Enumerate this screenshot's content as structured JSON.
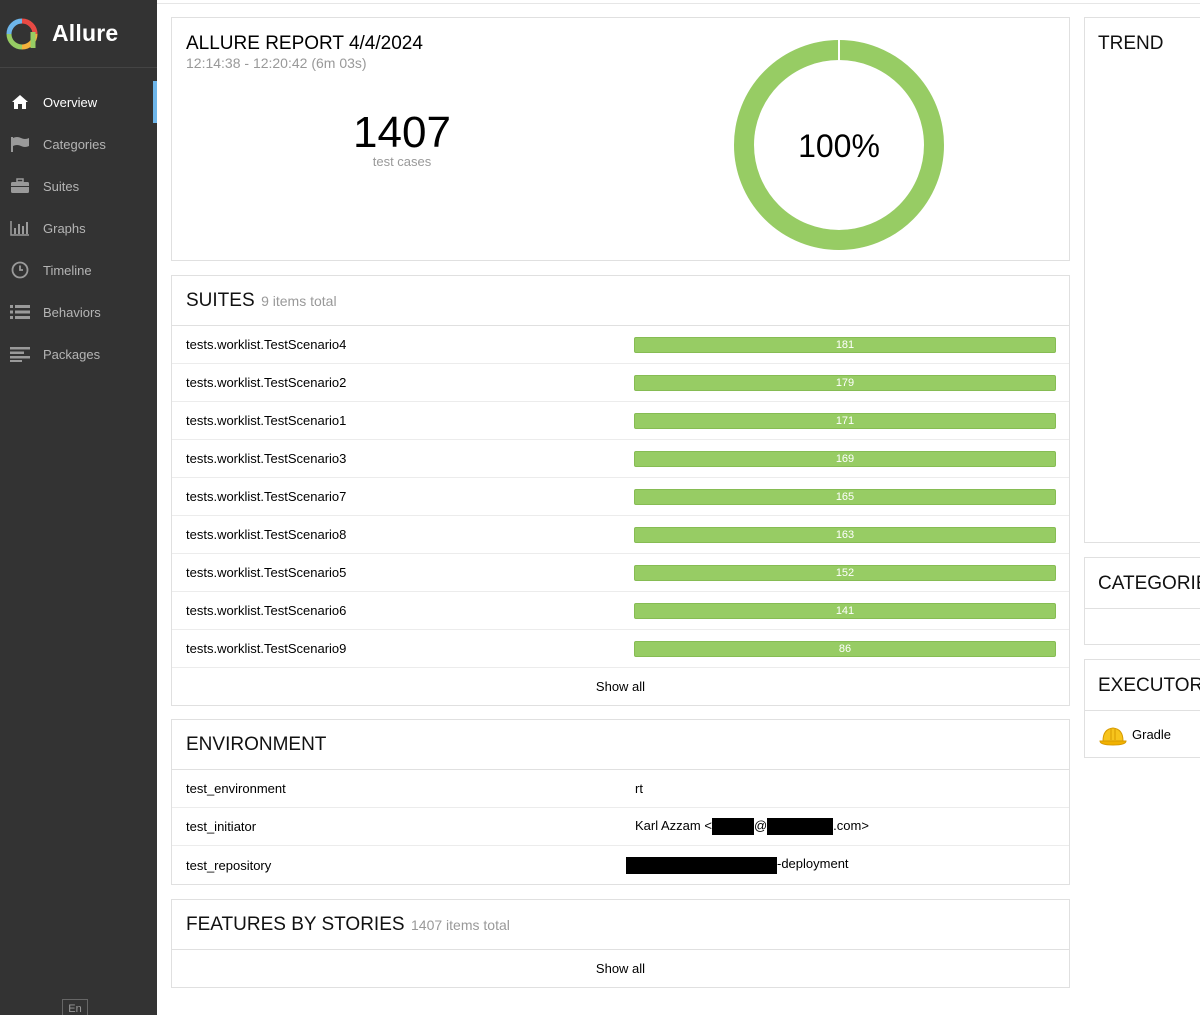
{
  "brand": {
    "name": "Allure"
  },
  "nav": [
    {
      "label": "Overview",
      "icon": "home-icon",
      "active": true
    },
    {
      "label": "Categories",
      "icon": "flag-icon"
    },
    {
      "label": "Suites",
      "icon": "briefcase-icon"
    },
    {
      "label": "Graphs",
      "icon": "bar-chart-icon"
    },
    {
      "label": "Timeline",
      "icon": "clock-icon"
    },
    {
      "label": "Behaviors",
      "icon": "list-icon"
    },
    {
      "label": "Packages",
      "icon": "align-left-icon"
    }
  ],
  "language": "En",
  "summary": {
    "title": "ALLURE REPORT 4/4/2024",
    "time": "12:14:38 - 12:20:42 (6m 03s)",
    "total": "1407",
    "total_label": "test cases",
    "pass_percent": "100%",
    "pass_fraction": 1.0,
    "pass_color": "#97cc64"
  },
  "suites": {
    "title": "SUITES",
    "count": "9 items total",
    "items": [
      {
        "name": "tests.worklist.TestScenario4",
        "value": "181"
      },
      {
        "name": "tests.worklist.TestScenario2",
        "value": "179"
      },
      {
        "name": "tests.worklist.TestScenario1",
        "value": "171"
      },
      {
        "name": "tests.worklist.TestScenario3",
        "value": "169"
      },
      {
        "name": "tests.worklist.TestScenario7",
        "value": "165"
      },
      {
        "name": "tests.worklist.TestScenario8",
        "value": "163"
      },
      {
        "name": "tests.worklist.TestScenario5",
        "value": "152"
      },
      {
        "name": "tests.worklist.TestScenario6",
        "value": "141"
      },
      {
        "name": "tests.worklist.TestScenario9",
        "value": "86"
      }
    ],
    "show_all": "Show all"
  },
  "environment": {
    "title": "ENVIRONMENT",
    "rows": [
      {
        "key": "test_environment",
        "value": "rt"
      },
      {
        "key": "test_initiator",
        "value_prefix": "Karl Azzam <",
        "value_at": "@",
        "value_suffix": ".com>"
      },
      {
        "key": "test_repository",
        "value_suffix": "-deployment"
      }
    ]
  },
  "features": {
    "title": "FEATURES BY STORIES",
    "count": "1407 items total",
    "show_all": "Show all"
  },
  "trend": {
    "title": "TREND"
  },
  "categories": {
    "title": "CATEGORIES"
  },
  "executors": {
    "title": "EXECUTORS",
    "items": [
      {
        "name": "Gradle",
        "icon": "hard-hat-icon"
      }
    ]
  }
}
